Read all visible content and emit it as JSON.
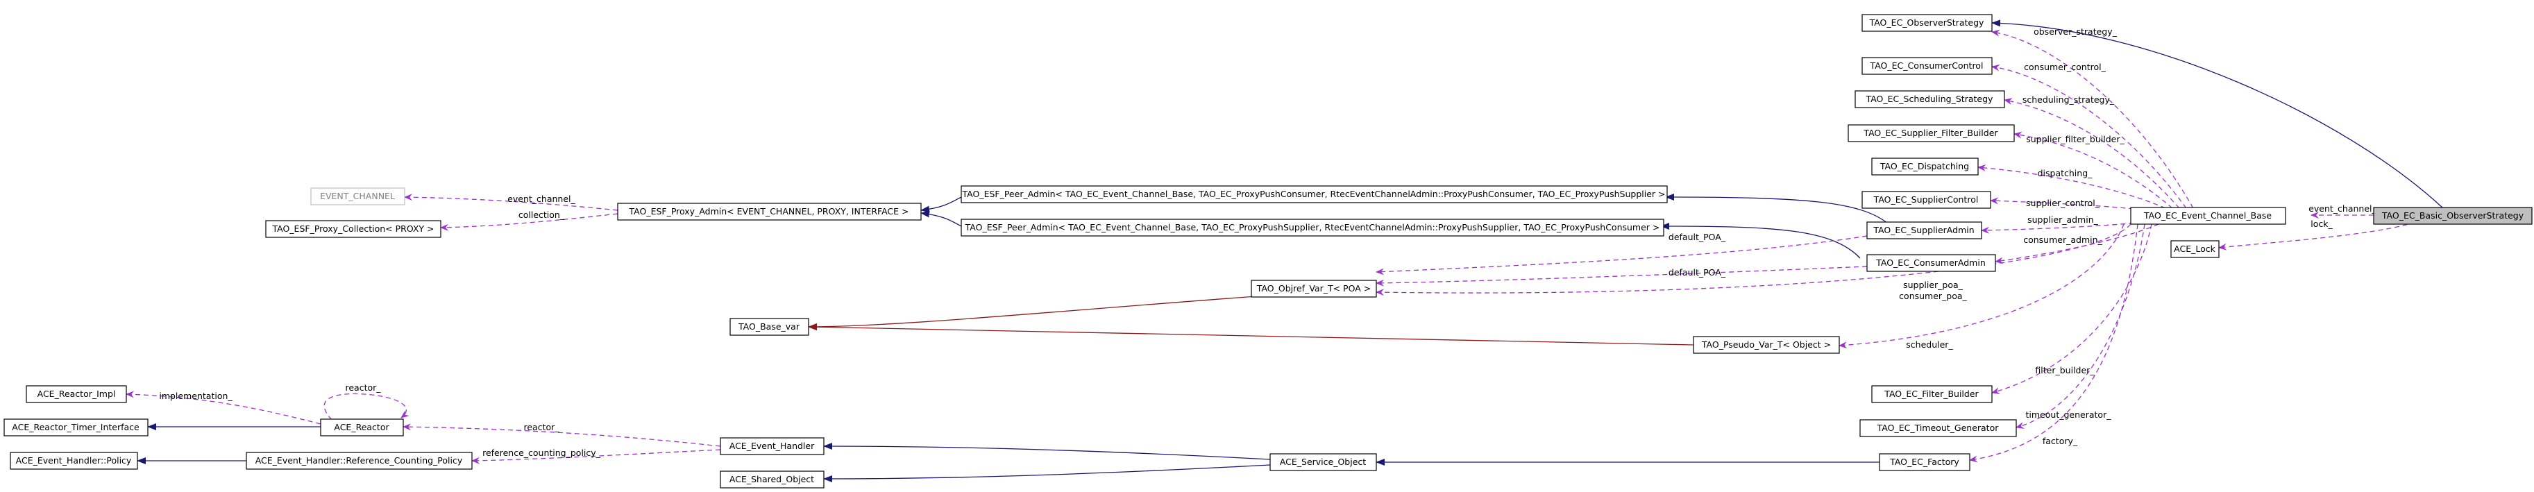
{
  "nodes": {
    "basic_observer": "TAO_EC_Basic_ObserverStrategy",
    "event_channel_base": "TAO_EC_Event_Channel_Base",
    "ace_lock": "ACE_Lock",
    "observer_strategy": "TAO_EC_ObserverStrategy",
    "consumer_control": "TAO_EC_ConsumerControl",
    "scheduling_strategy": "TAO_EC_Scheduling_Strategy",
    "supplier_filter_builder": "TAO_EC_Supplier_Filter_Builder",
    "dispatching": "TAO_EC_Dispatching",
    "supplier_control": "TAO_EC_SupplierControl",
    "supplier_admin": "TAO_EC_SupplierAdmin",
    "consumer_admin": "TAO_EC_ConsumerAdmin",
    "peer_admin_consumer": "TAO_ESF_Peer_Admin< TAO_EC_Event_Channel_Base, TAO_EC_ProxyPushConsumer, RtecEventChannelAdmin::ProxyPushConsumer, TAO_EC_ProxyPushSupplier >",
    "peer_admin_supplier": "TAO_ESF_Peer_Admin< TAO_EC_Event_Channel_Base, TAO_EC_ProxyPushSupplier, RtecEventChannelAdmin::ProxyPushSupplier, TAO_EC_ProxyPushConsumer >",
    "proxy_admin": "TAO_ESF_Proxy_Admin< EVENT_CHANNEL, PROXY, INTERFACE >",
    "event_channel_param": "EVENT_CHANNEL",
    "proxy_collection": "TAO_ESF_Proxy_Collection< PROXY >",
    "objref_var": "TAO_Objref_Var_T< POA >",
    "base_var": "TAO_Base_var",
    "pseudo_var": "TAO_Pseudo_Var_T< Object >",
    "filter_builder": "TAO_EC_Filter_Builder",
    "timeout_generator": "TAO_EC_Timeout_Generator",
    "ec_factory": "TAO_EC_Factory",
    "reactor_impl": "ACE_Reactor_Impl",
    "reactor_timer": "ACE_Reactor_Timer_Interface",
    "reactor": "ACE_Reactor",
    "event_handler_policy": "ACE_Event_Handler::Policy",
    "ref_counting_policy": "ACE_Event_Handler::Reference_Counting_Policy",
    "event_handler": "ACE_Event_Handler",
    "shared_object": "ACE_Shared_Object",
    "service_object": "ACE_Service_Object"
  },
  "edge_labels": {
    "observer_strategy": "observer_strategy_",
    "consumer_control": "consumer_control_",
    "scheduling_strategy": "scheduling_strategy_",
    "supplier_filter_builder": "supplier_filter_builder_",
    "dispatching": "dispatching_",
    "supplier_control": "supplier_control_",
    "supplier_admin": "supplier_admin_",
    "consumer_admin": "consumer_admin_",
    "event_channel": "event_channel_",
    "lock": "lock_",
    "ec_event_channel": "event_channel_",
    "collection": "collection_",
    "default_poa_1": "default_POA_",
    "default_poa_2": "default_POA_",
    "supplier_poa": "supplier_poa_",
    "consumer_poa": "consumer_poa_",
    "scheduler": "scheduler_",
    "filter_builder": "filter_builder_",
    "timeout_generator": "timeout_generator_",
    "factory": "factory_",
    "implementation": "implementation_",
    "reactor_self": "reactor_",
    "reactor": "reactor_",
    "reference_counting_policy": "reference_counting_policy_"
  },
  "colors": {
    "usage_edge": "#9a32cd",
    "inheritance_edge": "#191970",
    "template_edge": "#8b1a1a",
    "selected_fill": "#bfbfbf",
    "greyed_node": "#bfbfbf"
  }
}
